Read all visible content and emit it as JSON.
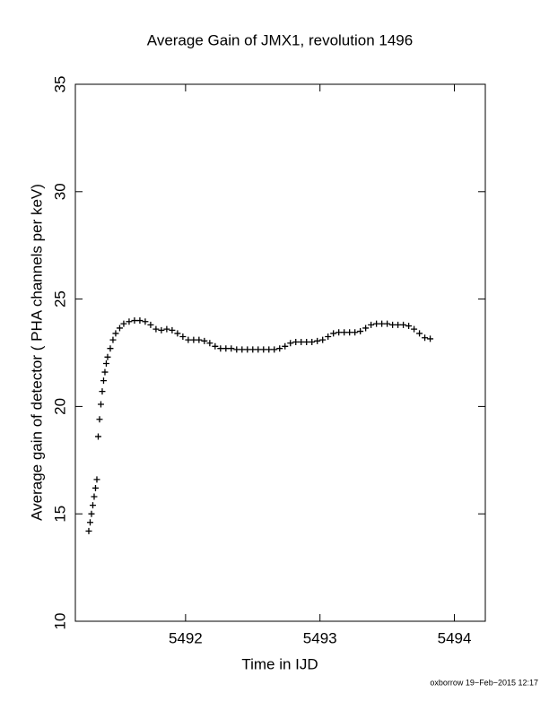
{
  "chart_data": {
    "type": "scatter",
    "title": "Average Gain of JMX1, revolution 1496",
    "xlabel": "Time in IJD",
    "ylabel": "Average gain of detector ( PHA channels per keV)",
    "footer": "oxborrow 19−Feb−2015 12:17",
    "xlim": [
      5491.18,
      5494.23
    ],
    "ylim": [
      10,
      35
    ],
    "xticks": [
      5492,
      5493,
      5494
    ],
    "yticks": [
      10,
      15,
      20,
      25,
      30,
      35
    ],
    "marker": "plus",
    "color": "#000000",
    "x": [
      5491.28,
      5491.29,
      5491.3,
      5491.31,
      5491.32,
      5491.33,
      5491.34,
      5491.35,
      5491.36,
      5491.37,
      5491.38,
      5491.39,
      5491.4,
      5491.41,
      5491.42,
      5491.44,
      5491.46,
      5491.48,
      5491.51,
      5491.54,
      5491.58,
      5491.62,
      5491.66,
      5491.7,
      5491.74,
      5491.78,
      5491.82,
      5491.86,
      5491.9,
      5491.94,
      5491.98,
      5492.02,
      5492.06,
      5492.1,
      5492.14,
      5492.18,
      5492.22,
      5492.26,
      5492.3,
      5492.34,
      5492.38,
      5492.42,
      5492.46,
      5492.5,
      5492.54,
      5492.58,
      5492.62,
      5492.66,
      5492.7,
      5492.74,
      5492.78,
      5492.82,
      5492.86,
      5492.9,
      5492.94,
      5492.98,
      5493.02,
      5493.06,
      5493.1,
      5493.14,
      5493.18,
      5493.22,
      5493.26,
      5493.3,
      5493.34,
      5493.38,
      5493.42,
      5493.46,
      5493.5,
      5493.54,
      5493.58,
      5493.62,
      5493.66,
      5493.7,
      5493.74,
      5493.78,
      5493.82
    ],
    "values": [
      14.2,
      14.6,
      15.0,
      15.4,
      15.8,
      16.2,
      16.6,
      18.6,
      19.4,
      20.1,
      20.7,
      21.2,
      21.6,
      22.0,
      22.3,
      22.7,
      23.1,
      23.4,
      23.65,
      23.85,
      23.95,
      24.0,
      24.0,
      23.95,
      23.8,
      23.6,
      23.55,
      23.6,
      23.55,
      23.4,
      23.25,
      23.1,
      23.1,
      23.1,
      23.05,
      22.95,
      22.8,
      22.7,
      22.7,
      22.7,
      22.65,
      22.65,
      22.65,
      22.65,
      22.65,
      22.65,
      22.65,
      22.65,
      22.7,
      22.8,
      22.95,
      23.0,
      23.0,
      23.0,
      23.0,
      23.05,
      23.1,
      23.25,
      23.4,
      23.45,
      23.45,
      23.45,
      23.45,
      23.5,
      23.65,
      23.8,
      23.85,
      23.85,
      23.85,
      23.8,
      23.8,
      23.8,
      23.75,
      23.6,
      23.4,
      23.2,
      23.15
    ]
  }
}
